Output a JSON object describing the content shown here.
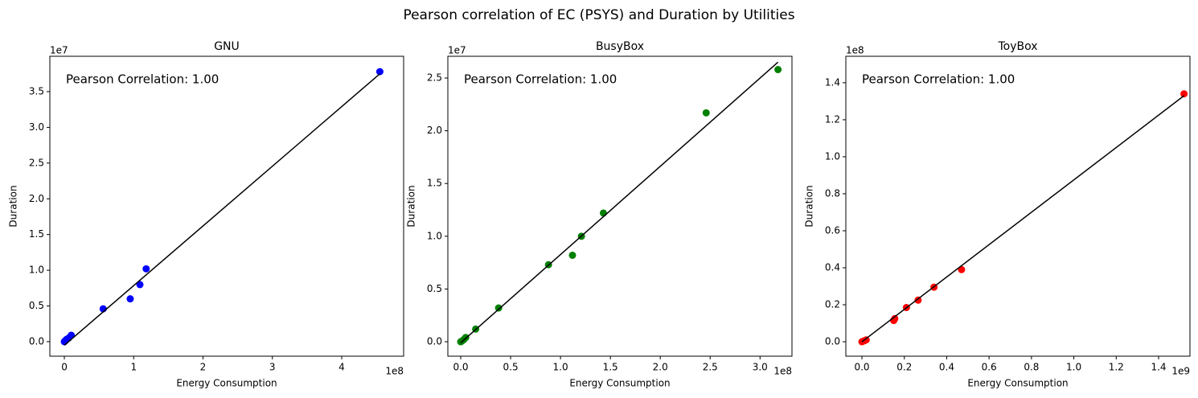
{
  "title": "Pearson correlation of EC (PSYS) and Duration by Utilities",
  "chart_data": [
    {
      "type": "scatter",
      "title": "GNU",
      "xlabel": "Energy Consumption",
      "ylabel": "Duration",
      "annotation": "Pearson Correlation: 1.00",
      "color": "#0000ff",
      "x": [
        455000000,
        118000000,
        109000000,
        95000000,
        56000000,
        10000000,
        6000000,
        3000000,
        1000000,
        0
      ],
      "y": [
        37800000,
        10200000,
        8000000,
        6000000,
        4600000,
        900000,
        500000,
        300000,
        100000,
        0
      ],
      "trend_line": {
        "x": [
          0,
          455000000
        ],
        "y": [
          -500000.0,
          37500000
        ],
        "color": "#000000"
      },
      "xlim": [
        -20900000,
        489300000
      ],
      "ylim": [
        -2030000,
        39950000
      ],
      "xticks": [
        0,
        {
          "value": 100000000,
          "label": "1"
        },
        {
          "value": 200000000,
          "label": "2"
        },
        {
          "value": 300000000,
          "label": "3"
        },
        {
          "value": 400000000,
          "label": "4"
        }
      ],
      "yticks": [
        {
          "value": 0,
          "label": "0.0"
        },
        {
          "value": 5000000,
          "label": "0.5"
        },
        {
          "value": 10000000,
          "label": "1.0"
        },
        {
          "value": 15000000,
          "label": "1.5"
        },
        {
          "value": 20000000,
          "label": "2.0"
        },
        {
          "value": 25000000,
          "label": "2.5"
        },
        {
          "value": 30000000,
          "label": "3.0"
        },
        {
          "value": 35000000,
          "label": "3.5"
        }
      ],
      "x_offset_label": "1e8",
      "y_offset_label": "1e7"
    },
    {
      "type": "scatter",
      "title": "BusyBox",
      "xlabel": "Energy Consumption",
      "ylabel": "Duration",
      "annotation": "Pearson Correlation: 1.00",
      "color": "#008000",
      "x": [
        318000000,
        246000000,
        143000000,
        121000000,
        112000000,
        88000000,
        38000000,
        15000000,
        5000000,
        3000000,
        1000000,
        0
      ],
      "y": [
        25800000,
        21700000,
        12200000,
        10000000,
        8200000,
        7300000,
        3200000,
        1200000,
        400000,
        200000,
        50000,
        0
      ],
      "trend_line": {
        "x": [
          0,
          318000000
        ],
        "y": [
          -100000,
          26500000
        ],
        "color": "#000000"
      },
      "xlim": [
        -12900000,
        332000000
      ],
      "ylim": [
        -1370000,
        27060000
      ],
      "xticks": [
        {
          "value": 0,
          "label": "0.0"
        },
        {
          "value": 50000000,
          "label": "0.5"
        },
        {
          "value": 100000000,
          "label": "1.0"
        },
        {
          "value": 150000000,
          "label": "1.5"
        },
        {
          "value": 200000000,
          "label": "2.0"
        },
        {
          "value": 250000000,
          "label": "2.5"
        },
        {
          "value": 300000000,
          "label": "3.0"
        }
      ],
      "yticks": [
        {
          "value": 0,
          "label": "0.0"
        },
        {
          "value": 5000000,
          "label": "0.5"
        },
        {
          "value": 10000000,
          "label": "1.0"
        },
        {
          "value": 15000000,
          "label": "1.5"
        },
        {
          "value": 20000000,
          "label": "2.0"
        },
        {
          "value": 25000000,
          "label": "2.5"
        }
      ],
      "x_offset_label": "1e8",
      "y_offset_label": "1e7"
    },
    {
      "type": "scatter",
      "title": "ToyBox",
      "xlabel": "Energy Consumption",
      "ylabel": "Duration",
      "annotation": "Pearson Correlation: 1.00",
      "color": "#ff0000",
      "x": [
        1520000000,
        470000000,
        340000000,
        265000000,
        210000000,
        155000000,
        150000000,
        20000000,
        10000000,
        0
      ],
      "y": [
        134000000,
        39000000,
        29500000,
        22500000,
        18500000,
        12500000,
        11500000,
        1000000,
        500000,
        0
      ],
      "trend_line": {
        "x": [
          0,
          1520000000
        ],
        "y": [
          0,
          133000000
        ],
        "color": "#000000"
      },
      "xlim": [
        -76000000,
        1548000000
      ],
      "ylim": [
        -7800000,
        154300000
      ],
      "xticks": [
        {
          "value": 0,
          "label": "0.0"
        },
        {
          "value": 200000000,
          "label": "0.2"
        },
        {
          "value": 400000000,
          "label": "0.4"
        },
        {
          "value": 600000000,
          "label": "0.6"
        },
        {
          "value": 800000000,
          "label": "0.8"
        },
        {
          "value": 1000000000,
          "label": "1.0"
        },
        {
          "value": 1200000000,
          "label": "1.2"
        },
        {
          "value": 1400000000,
          "label": "1.4"
        }
      ],
      "yticks": [
        {
          "value": 0,
          "label": "0.0"
        },
        {
          "value": 20000000,
          "label": "0.2"
        },
        {
          "value": 40000000,
          "label": "0.4"
        },
        {
          "value": 60000000,
          "label": "0.6"
        },
        {
          "value": 80000000,
          "label": "0.8"
        },
        {
          "value": 100000000,
          "label": "1.0"
        },
        {
          "value": 120000000,
          "label": "1.2"
        },
        {
          "value": 140000000,
          "label": "1.4"
        }
      ],
      "x_offset_label": "1e9",
      "y_offset_label": "1e8"
    }
  ]
}
